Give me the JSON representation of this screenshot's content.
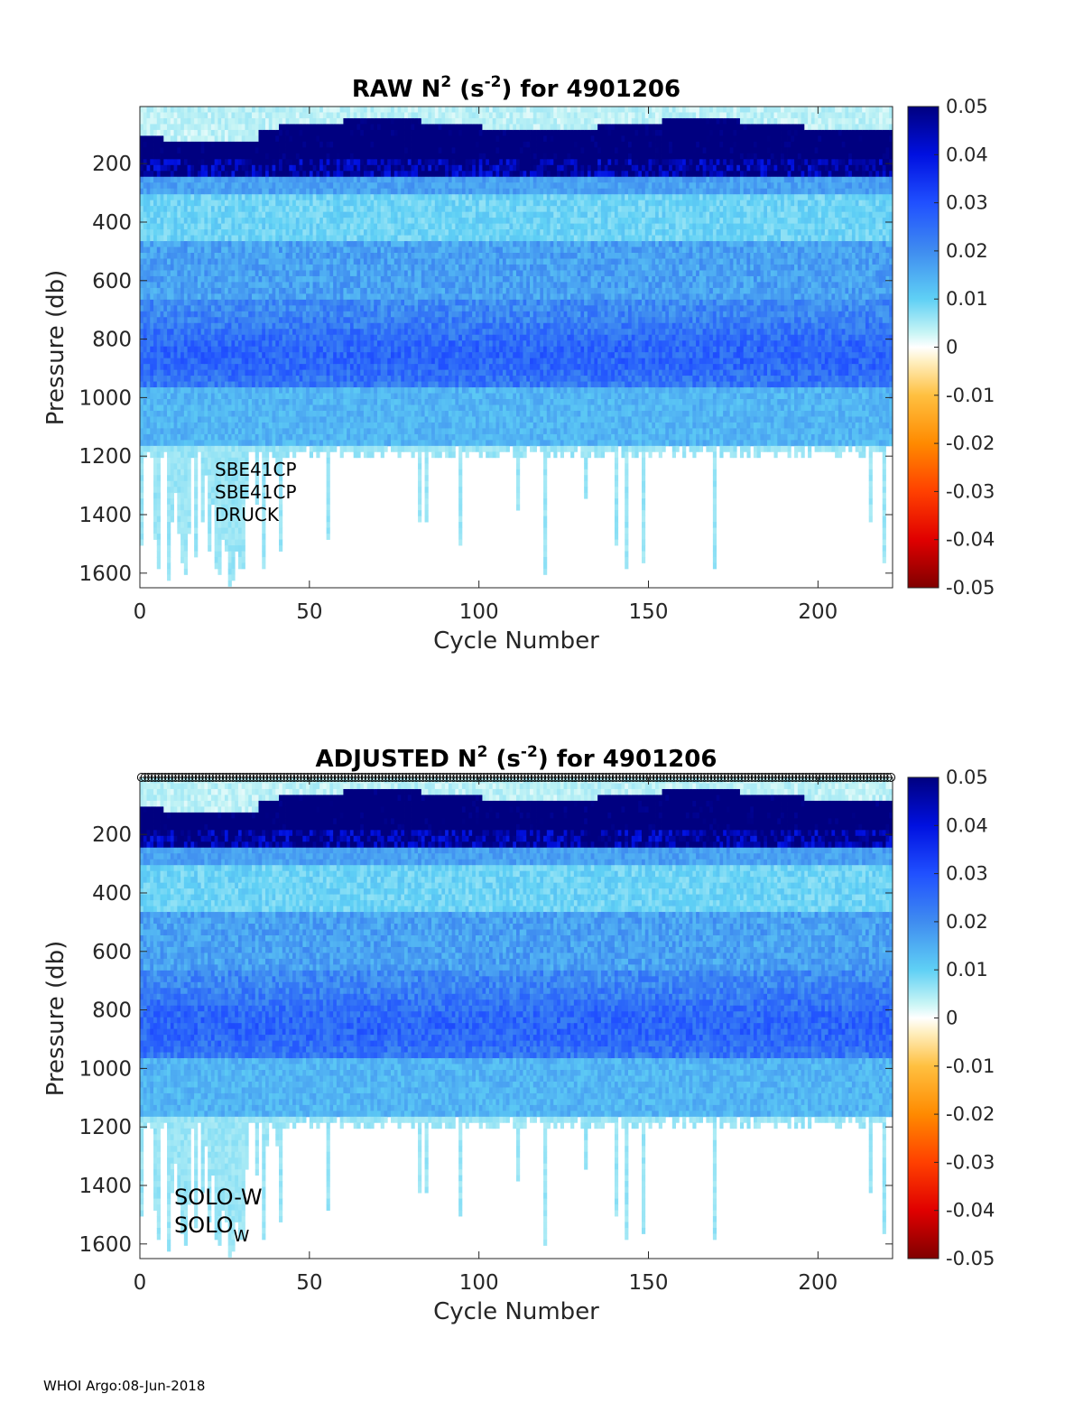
{
  "footer": "WHOI Argo:08-Jun-2018",
  "chart_data": [
    {
      "type": "heatmap",
      "title": "RAW N",
      "title_sup1": "2",
      "title_mid": " (s",
      "title_sup2": "-2",
      "title_end": ") for 4901206",
      "xlabel": "Cycle Number",
      "ylabel": "Pressure (db)",
      "xlim": [
        0,
        222
      ],
      "ylim": [
        1650,
        5
      ],
      "xticks": [
        "0",
        "50",
        "100",
        "150",
        "200"
      ],
      "xtick_values": [
        0,
        50,
        100,
        150,
        200
      ],
      "yticks": [
        "200",
        "400",
        "600",
        "800",
        "1000",
        "1200",
        "1400",
        "1600"
      ],
      "ytick_values": [
        200,
        400,
        600,
        800,
        1000,
        1200,
        1400,
        1600
      ],
      "colorbar": {
        "range": [
          -0.05,
          0.05
        ],
        "ticks": [
          "0.05",
          "0.04",
          "0.03",
          "0.02",
          "0.01",
          "0",
          "-0.01",
          "-0.02",
          "-0.03",
          "-0.04",
          "-0.05"
        ],
        "tick_values": [
          0.05,
          0.04,
          0.03,
          0.02,
          0.01,
          0,
          -0.01,
          -0.02,
          -0.03,
          -0.04,
          -0.05
        ],
        "colormap": "blue-cyan-white-yellow-red"
      },
      "annotations": [
        "SBE41CP",
        "SBE41CP",
        "DRUCK"
      ],
      "qc_markers": false
    },
    {
      "type": "heatmap",
      "title": "ADJUSTED N",
      "title_sup1": "2",
      "title_mid": " (s",
      "title_sup2": "-2",
      "title_end": ") for 4901206",
      "xlabel": "Cycle Number",
      "ylabel": "Pressure (db)",
      "xlim": [
        0,
        222
      ],
      "ylim": [
        1650,
        5
      ],
      "xticks": [
        "0",
        "50",
        "100",
        "150",
        "200"
      ],
      "xtick_values": [
        0,
        50,
        100,
        150,
        200
      ],
      "yticks": [
        "200",
        "400",
        "600",
        "800",
        "1000",
        "1200",
        "1400",
        "1600"
      ],
      "ytick_values": [
        200,
        400,
        600,
        800,
        1000,
        1200,
        1400,
        1600
      ],
      "colorbar": {
        "range": [
          -0.05,
          0.05
        ],
        "ticks": [
          "0.05",
          "0.04",
          "0.03",
          "0.02",
          "0.01",
          "0",
          "-0.01",
          "-0.02",
          "-0.03",
          "-0.04",
          "-0.05"
        ],
        "tick_values": [
          0.05,
          0.04,
          0.03,
          0.02,
          0.01,
          0,
          -0.01,
          -0.02,
          -0.03,
          -0.04,
          -0.05
        ],
        "colormap": "blue-cyan-white-yellow-red"
      },
      "annotations": [
        "SOLO-W",
        "SOLO"
      ],
      "annotation_sub": "W",
      "qc_markers": true
    }
  ]
}
